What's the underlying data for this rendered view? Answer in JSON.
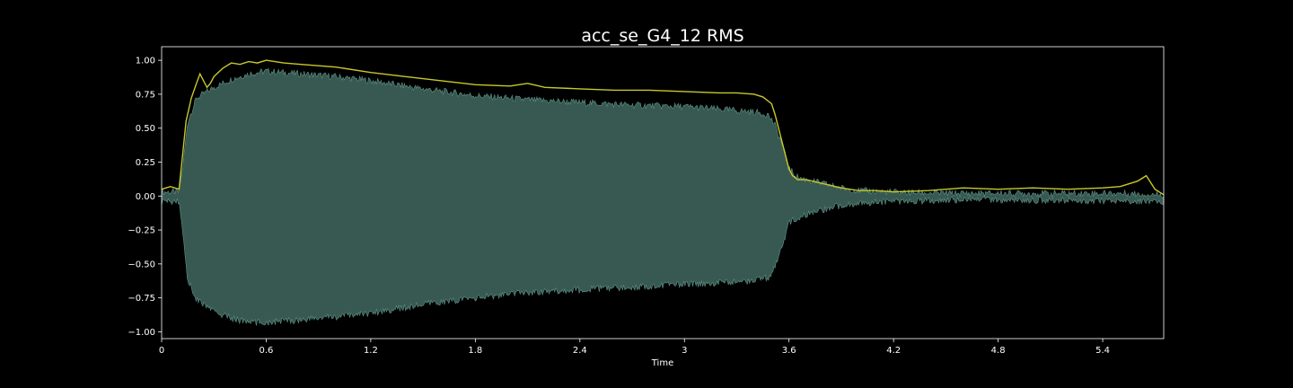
{
  "chart_data": {
    "type": "area",
    "title": "acc_se_G4_12 RMS",
    "xlabel": "Time",
    "ylabel": "",
    "xlim": [
      0,
      5.75
    ],
    "ylim": [
      -1.05,
      1.1
    ],
    "x_ticks": [
      0,
      0.6,
      1.2,
      1.8,
      2.4,
      3.0,
      3.6,
      4.2,
      4.8,
      5.4
    ],
    "x_tick_labels": [
      "0",
      "0.6",
      "1.2",
      "1.8",
      "2.4",
      "3",
      "3.6",
      "4.2",
      "4.8",
      "5.4"
    ],
    "y_ticks": [
      1.0,
      0.75,
      0.5,
      0.25,
      0.0,
      -0.25,
      -0.5,
      -0.75,
      -1.0
    ],
    "y_tick_labels": [
      "1.00",
      "0.75",
      "0.50",
      "0.25",
      "0.00",
      "−0.25",
      "−0.50",
      "−0.75",
      "−1.00"
    ],
    "grid": false,
    "colors": {
      "waveform": "#4d7c72",
      "waveform_edge": "#5e9488",
      "rms": "#c8c82a",
      "background": "#000000",
      "axes": "#ffffff"
    },
    "series": [
      {
        "kind": "waveform_envelope",
        "x": [
          0,
          0.1,
          0.12,
          0.15,
          0.2,
          0.3,
          0.4,
          0.5,
          0.6,
          0.8,
          1.0,
          1.2,
          1.5,
          1.8,
          2.1,
          2.4,
          2.7,
          3.0,
          3.2,
          3.4,
          3.48,
          3.52,
          3.56,
          3.6,
          3.65,
          3.7,
          3.8,
          3.9,
          4.0,
          4.2,
          4.5,
          5.0,
          5.5,
          5.75
        ],
        "upper": [
          0.03,
          0.03,
          0.2,
          0.55,
          0.72,
          0.8,
          0.86,
          0.9,
          0.92,
          0.9,
          0.88,
          0.85,
          0.79,
          0.74,
          0.71,
          0.69,
          0.67,
          0.66,
          0.64,
          0.62,
          0.6,
          0.52,
          0.38,
          0.2,
          0.14,
          0.12,
          0.09,
          0.06,
          0.04,
          0.03,
          0.02,
          0.02,
          0.02,
          0.01
        ],
        "lower": [
          -0.04,
          -0.04,
          -0.25,
          -0.62,
          -0.76,
          -0.85,
          -0.9,
          -0.93,
          -0.93,
          -0.91,
          -0.89,
          -0.86,
          -0.8,
          -0.75,
          -0.71,
          -0.69,
          -0.67,
          -0.65,
          -0.64,
          -0.62,
          -0.6,
          -0.52,
          -0.38,
          -0.2,
          -0.16,
          -0.14,
          -0.1,
          -0.07,
          -0.05,
          -0.04,
          -0.03,
          -0.03,
          -0.04,
          -0.04
        ]
      },
      {
        "kind": "rms",
        "x": [
          0,
          0.05,
          0.1,
          0.12,
          0.14,
          0.17,
          0.2,
          0.22,
          0.24,
          0.26,
          0.28,
          0.3,
          0.35,
          0.4,
          0.45,
          0.5,
          0.55,
          0.6,
          0.65,
          0.7,
          0.8,
          0.9,
          1.0,
          1.2,
          1.4,
          1.6,
          1.8,
          2.0,
          2.1,
          2.2,
          2.4,
          2.6,
          2.8,
          3.0,
          3.2,
          3.3,
          3.4,
          3.45,
          3.5,
          3.52,
          3.55,
          3.58,
          3.6,
          3.62,
          3.65,
          3.7,
          3.8,
          3.9,
          4.0,
          4.1,
          4.2,
          4.4,
          4.6,
          4.8,
          5.0,
          5.2,
          5.4,
          5.5,
          5.55,
          5.6,
          5.65,
          5.7,
          5.75
        ],
        "y": [
          0.05,
          0.07,
          0.05,
          0.3,
          0.55,
          0.72,
          0.83,
          0.9,
          0.85,
          0.8,
          0.83,
          0.88,
          0.94,
          0.98,
          0.97,
          0.99,
          0.98,
          1.0,
          0.99,
          0.98,
          0.97,
          0.96,
          0.95,
          0.91,
          0.88,
          0.85,
          0.82,
          0.81,
          0.83,
          0.8,
          0.79,
          0.78,
          0.78,
          0.77,
          0.76,
          0.76,
          0.75,
          0.73,
          0.68,
          0.6,
          0.45,
          0.3,
          0.2,
          0.15,
          0.12,
          0.12,
          0.09,
          0.06,
          0.04,
          0.04,
          0.03,
          0.04,
          0.06,
          0.05,
          0.06,
          0.05,
          0.06,
          0.07,
          0.09,
          0.11,
          0.15,
          0.05,
          0.01
        ]
      }
    ]
  }
}
